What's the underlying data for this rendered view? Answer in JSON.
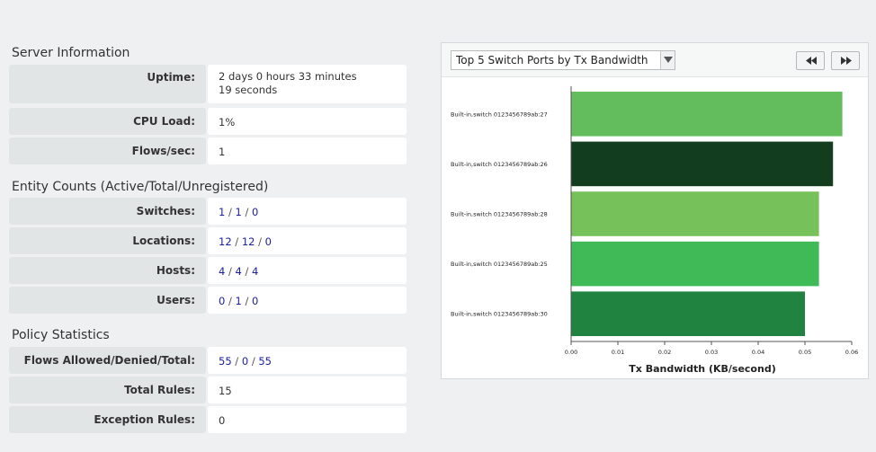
{
  "server": {
    "title": "Server Information",
    "rows": [
      {
        "label": "Uptime:",
        "value": "2 days 0 hours 33 minutes 19 seconds"
      },
      {
        "label": "CPU Load:",
        "value": "1%"
      },
      {
        "label": "Flows/sec:",
        "value": "1"
      }
    ]
  },
  "entities": {
    "title": "Entity Counts (Active/Total/Unregistered)",
    "rows": [
      {
        "label": "Switches:",
        "a": "1",
        "b": "1",
        "c": "0"
      },
      {
        "label": "Locations:",
        "a": "12",
        "b": "12",
        "c": "0"
      },
      {
        "label": "Hosts:",
        "a": "4",
        "b": "4",
        "c": "4"
      },
      {
        "label": "Users:",
        "a": "0",
        "b": "1",
        "c": "0"
      }
    ]
  },
  "policy": {
    "title": "Policy Statistics",
    "rows": [
      {
        "label": "Flows Allowed/Denied/Total:",
        "a": "55",
        "b": "0",
        "c": "55"
      },
      {
        "label": "Total Rules:",
        "value": "15"
      },
      {
        "label": "Exception Rules:",
        "value": "0"
      }
    ]
  },
  "separator": "/",
  "chart_panel": {
    "select_value": "Top 5 Switch Ports by Tx Bandwidth",
    "icons": {
      "dropdown": "chevron-down-icon",
      "prev": "rewind-icon",
      "next": "fast-forward-icon"
    }
  },
  "chart_data": {
    "type": "bar",
    "orientation": "horizontal",
    "categories": [
      "Built-in,switch 0123456789ab:27",
      "Built-in,switch 0123456789ab:26",
      "Built-in,switch 0123456789ab:28",
      "Built-in,switch 0123456789ab:25",
      "Built-in,switch 0123456789ab:30"
    ],
    "values": [
      0.058,
      0.056,
      0.053,
      0.053,
      0.05
    ],
    "colors": [
      "#63bd5d",
      "#123d1e",
      "#76c15a",
      "#3fba56",
      "#208440"
    ],
    "xlabel": "Tx Bandwidth (KB/second)",
    "xlim": [
      0,
      0.06
    ],
    "xticks": [
      "0.00",
      "0.01",
      "0.02",
      "0.03",
      "0.04",
      "0.05",
      "0.06"
    ],
    "grid": false
  }
}
